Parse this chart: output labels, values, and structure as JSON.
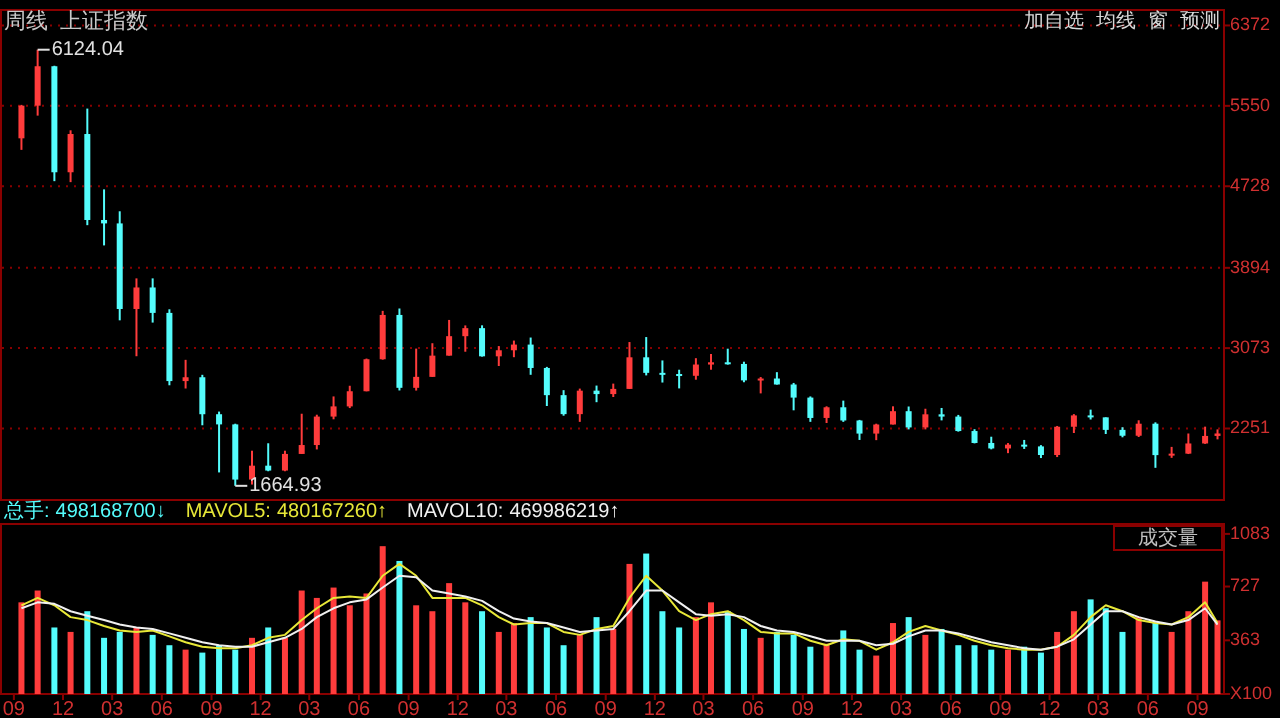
{
  "chart_data": [
    {
      "type": "candlestick",
      "title": "周线",
      "subtitle": "上证指数",
      "x": [
        "2007-09-15",
        "2007-10-15",
        "2007-11-15",
        "2007-12-15",
        "2008-01-15",
        "2008-02-15",
        "2008-03-15",
        "2008-04-15",
        "2008-05-15",
        "2008-06-15",
        "2008-07-15",
        "2008-08-15",
        "2008-09-15",
        "2008-10-15",
        "2008-11-15",
        "2008-12-15",
        "2009-01-15",
        "2009-02-15",
        "2009-03-15",
        "2009-04-15",
        "2009-05-15",
        "2009-06-15",
        "2009-07-15",
        "2009-08-15",
        "2009-09-15",
        "2009-10-15",
        "2009-11-15",
        "2009-12-15",
        "2010-01-15",
        "2010-02-15",
        "2010-03-15",
        "2010-04-15",
        "2010-05-15",
        "2010-06-15",
        "2010-07-15",
        "2010-08-15",
        "2010-09-15",
        "2010-10-15",
        "2010-11-15",
        "2010-12-15",
        "2011-01-15",
        "2011-02-15",
        "2011-03-15",
        "2011-04-15",
        "2011-05-15",
        "2011-06-15",
        "2011-07-15",
        "2011-08-15",
        "2011-09-15",
        "2011-10-15",
        "2011-11-15",
        "2011-12-15",
        "2012-01-15",
        "2012-02-15",
        "2012-03-15",
        "2012-04-15",
        "2012-05-15",
        "2012-06-15",
        "2012-07-15",
        "2012-08-15",
        "2012-09-15",
        "2012-10-15",
        "2012-11-15",
        "2012-12-15",
        "2013-01-15",
        "2013-02-15",
        "2013-03-15",
        "2013-04-15",
        "2013-05-15",
        "2013-06-15",
        "2013-07-15",
        "2013-08-15",
        "2013-09-15",
        "2013-10-08"
      ],
      "ohlc": [
        [
          5218,
          5560,
          5100,
          5552
        ],
        [
          5552,
          6124.04,
          5450,
          5955
        ],
        [
          5955,
          5960,
          4780,
          4871
        ],
        [
          4871,
          5300,
          4770,
          5262
        ],
        [
          5262,
          5522,
          4330,
          4383
        ],
        [
          4383,
          4696,
          4123,
          4348
        ],
        [
          4348,
          4472,
          3357,
          3473
        ],
        [
          3473,
          3786,
          2990,
          3693
        ],
        [
          3693,
          3786,
          3334,
          3433
        ],
        [
          3433,
          3470,
          2693,
          2736
        ],
        [
          2736,
          2953,
          2660,
          2775
        ],
        [
          2775,
          2800,
          2284,
          2397
        ],
        [
          2397,
          2424,
          1802,
          2293
        ],
        [
          2293,
          2300,
          1664.93,
          1729
        ],
        [
          1729,
          2024,
          1678,
          1871
        ],
        [
          1871,
          2100,
          1814,
          1821
        ],
        [
          1821,
          2024,
          1814,
          1991
        ],
        [
          1991,
          2402,
          1991,
          2082
        ],
        [
          2082,
          2392,
          2037,
          2373
        ],
        [
          2373,
          2579,
          2345,
          2477
        ],
        [
          2477,
          2688,
          2460,
          2632
        ],
        [
          2632,
          2966,
          2631,
          2959
        ],
        [
          2959,
          3454,
          2955,
          3412
        ],
        [
          3412,
          3478,
          2640,
          2667
        ],
        [
          2667,
          3068,
          2639,
          2779
        ],
        [
          2779,
          3123,
          2779,
          2996
        ],
        [
          2996,
          3361,
          2996,
          3195
        ],
        [
          3195,
          3305,
          3036,
          3277
        ],
        [
          3277,
          3306,
          2986,
          2989
        ],
        [
          2989,
          3094,
          2890,
          3051
        ],
        [
          3051,
          3150,
          2980,
          3109
        ],
        [
          3109,
          3181,
          2800,
          2870
        ],
        [
          2870,
          2881,
          2481,
          2592
        ],
        [
          2592,
          2643,
          2382,
          2398
        ],
        [
          2398,
          2659,
          2319,
          2638
        ],
        [
          2638,
          2690,
          2520,
          2603
        ],
        [
          2603,
          2710,
          2573,
          2656
        ],
        [
          2656,
          3135,
          2655,
          2979
        ],
        [
          2979,
          3186,
          2794,
          2820
        ],
        [
          2820,
          2947,
          2721,
          2808
        ],
        [
          2808,
          2852,
          2661,
          2790
        ],
        [
          2790,
          2970,
          2750,
          2905
        ],
        [
          2905,
          3013,
          2852,
          2928
        ],
        [
          2928,
          3067,
          2904,
          2911
        ],
        [
          2911,
          2934,
          2724,
          2743
        ],
        [
          2743,
          2777,
          2610,
          2762
        ],
        [
          2762,
          2827,
          2700,
          2701
        ],
        [
          2701,
          2717,
          2437,
          2567
        ],
        [
          2567,
          2579,
          2319,
          2359
        ],
        [
          2359,
          2478,
          2307,
          2468
        ],
        [
          2468,
          2536,
          2319,
          2333
        ],
        [
          2333,
          2339,
          2134,
          2199
        ],
        [
          2199,
          2300,
          2132,
          2292
        ],
        [
          2292,
          2478,
          2292,
          2428
        ],
        [
          2428,
          2476,
          2242,
          2262
        ],
        [
          2262,
          2453,
          2242,
          2396
        ],
        [
          2396,
          2461,
          2334,
          2373
        ],
        [
          2373,
          2390,
          2219,
          2225
        ],
        [
          2225,
          2244,
          2099,
          2103
        ],
        [
          2103,
          2167,
          2038,
          2047
        ],
        [
          2047,
          2102,
          1999,
          2086
        ],
        [
          2086,
          2134,
          2042,
          2068
        ],
        [
          2068,
          2081,
          1949,
          1980
        ],
        [
          1980,
          2277,
          1959,
          2269
        ],
        [
          2269,
          2398,
          2205,
          2385
        ],
        [
          2385,
          2444,
          2343,
          2365
        ],
        [
          2365,
          2365,
          2195,
          2237
        ],
        [
          2237,
          2264,
          2161,
          2177
        ],
        [
          2177,
          2335,
          2164,
          2300
        ],
        [
          2300,
          2314,
          1849,
          1979
        ],
        [
          1979,
          2063,
          1951,
          1994
        ],
        [
          1994,
          2200,
          1990,
          2098
        ],
        [
          2098,
          2270,
          2094,
          2175
        ],
        [
          2175,
          2242,
          2140,
          2200
        ]
      ],
      "xlim": [
        "2007-08-10",
        "2013-10-20"
      ],
      "ylim": [
        1520,
        6530
      ],
      "yticks": [
        2251,
        3073,
        3894,
        4728,
        5550,
        6372
      ],
      "grid": "y",
      "tick_labels": "y",
      "annotations": [
        {
          "text": "6124.04",
          "x": "2007-10-15",
          "y": 6124.04
        },
        {
          "text": "1664.93",
          "x": "2008-10-15",
          "y": 1664.93
        },
        "加自选",
        "均线",
        "窗",
        "预测"
      ]
    },
    {
      "type": "bar",
      "x": [
        "2007-09-15",
        "2007-10-15",
        "2007-11-15",
        "2007-12-15",
        "2008-01-15",
        "2008-02-15",
        "2008-03-15",
        "2008-04-15",
        "2008-05-15",
        "2008-06-15",
        "2008-07-15",
        "2008-08-15",
        "2008-09-15",
        "2008-10-15",
        "2008-11-15",
        "2008-12-15",
        "2009-01-15",
        "2009-02-15",
        "2009-03-15",
        "2009-04-15",
        "2009-05-15",
        "2009-06-15",
        "2009-07-15",
        "2009-08-15",
        "2009-09-15",
        "2009-10-15",
        "2009-11-15",
        "2009-12-15",
        "2010-01-15",
        "2010-02-15",
        "2010-03-15",
        "2010-04-15",
        "2010-05-15",
        "2010-06-15",
        "2010-07-15",
        "2010-08-15",
        "2010-09-15",
        "2010-10-15",
        "2010-11-15",
        "2010-12-15",
        "2011-01-15",
        "2011-02-15",
        "2011-03-15",
        "2011-04-15",
        "2011-05-15",
        "2011-06-15",
        "2011-07-15",
        "2011-08-15",
        "2011-09-15",
        "2011-10-15",
        "2011-11-15",
        "2011-12-15",
        "2012-01-15",
        "2012-02-15",
        "2012-03-15",
        "2012-04-15",
        "2012-05-15",
        "2012-06-15",
        "2012-07-15",
        "2012-08-15",
        "2012-09-15",
        "2012-10-15",
        "2012-11-15",
        "2012-12-15",
        "2013-01-15",
        "2013-02-15",
        "2013-03-15",
        "2013-04-15",
        "2013-05-15",
        "2013-06-15",
        "2013-07-15",
        "2013-08-15",
        "2013-09-15",
        "2013-10-08"
      ],
      "series": [
        {
          "name": "总手:",
          "type": "bar",
          "values": [
            620,
            700,
            450,
            420,
            560,
            380,
            420,
            450,
            400,
            330,
            300,
            280,
            330,
            300,
            380,
            450,
            380,
            700,
            650,
            720,
            600,
            680,
            1000,
            900,
            600,
            560,
            750,
            620,
            560,
            420,
            480,
            520,
            450,
            330,
            400,
            520,
            440,
            880,
            950,
            560,
            450,
            520,
            620,
            560,
            440,
            380,
            420,
            400,
            320,
            340,
            430,
            300,
            260,
            480,
            520,
            400,
            440,
            330,
            330,
            300,
            300,
            320,
            280,
            420,
            560,
            640,
            580,
            420,
            520,
            480,
            420,
            560,
            760,
            498
          ],
          "colors": [
            "#ff3c3c",
            "#ff3c3c",
            "#54fcfc",
            "#ff3c3c",
            "#54fcfc",
            "#54fcfc",
            "#54fcfc",
            "#ff3c3c",
            "#54fcfc",
            "#54fcfc",
            "#ff3c3c",
            "#54fcfc",
            "#54fcfc",
            "#54fcfc",
            "#ff3c3c",
            "#54fcfc",
            "#ff3c3c",
            "#ff3c3c",
            "#ff3c3c",
            "#ff3c3c",
            "#ff3c3c",
            "#ff3c3c",
            "#ff3c3c",
            "#54fcfc",
            "#ff3c3c",
            "#ff3c3c",
            "#ff3c3c",
            "#ff3c3c",
            "#54fcfc",
            "#ff3c3c",
            "#ff3c3c",
            "#54fcfc",
            "#54fcfc",
            "#54fcfc",
            "#ff3c3c",
            "#54fcfc",
            "#ff3c3c",
            "#ff3c3c",
            "#54fcfc",
            "#54fcfc",
            "#54fcfc",
            "#ff3c3c",
            "#ff3c3c",
            "#54fcfc",
            "#54fcfc",
            "#ff3c3c",
            "#54fcfc",
            "#54fcfc",
            "#54fcfc",
            "#ff3c3c",
            "#54fcfc",
            "#54fcfc",
            "#ff3c3c",
            "#ff3c3c",
            "#54fcfc",
            "#ff3c3c",
            "#54fcfc",
            "#54fcfc",
            "#54fcfc",
            "#54fcfc",
            "#ff3c3c",
            "#54fcfc",
            "#54fcfc",
            "#ff3c3c",
            "#ff3c3c",
            "#54fcfc",
            "#54fcfc",
            "#54fcfc",
            "#ff3c3c",
            "#54fcfc",
            "#ff3c3c",
            "#ff3c3c",
            "#ff3c3c",
            "#ff3c3c"
          ]
        },
        {
          "name": "MAVOL5:",
          "type": "line",
          "color": "#e8e838",
          "values": [
            600,
            650,
            600,
            520,
            500,
            460,
            430,
            420,
            430,
            390,
            350,
            320,
            310,
            310,
            330,
            380,
            400,
            500,
            580,
            650,
            660,
            650,
            800,
            880,
            800,
            650,
            650,
            650,
            600,
            520,
            470,
            480,
            480,
            420,
            400,
            440,
            460,
            650,
            800,
            700,
            560,
            500,
            540,
            560,
            500,
            420,
            410,
            410,
            360,
            330,
            370,
            360,
            300,
            350,
            420,
            460,
            430,
            400,
            360,
            330,
            310,
            300,
            300,
            320,
            400,
            520,
            600,
            560,
            500,
            480,
            470,
            520,
            620,
            480
          ]
        },
        {
          "name": "MAVOL10:",
          "type": "line",
          "color": "#f0f0f0",
          "values": [
            580,
            620,
            610,
            560,
            530,
            500,
            470,
            450,
            440,
            410,
            380,
            350,
            330,
            320,
            320,
            350,
            380,
            440,
            520,
            580,
            620,
            640,
            720,
            800,
            790,
            700,
            680,
            660,
            630,
            560,
            510,
            490,
            480,
            450,
            420,
            430,
            440,
            560,
            700,
            700,
            620,
            540,
            530,
            540,
            520,
            460,
            430,
            420,
            390,
            360,
            360,
            360,
            330,
            340,
            390,
            430,
            430,
            410,
            380,
            350,
            330,
            310,
            300,
            320,
            370,
            470,
            560,
            560,
            520,
            490,
            470,
            500,
            580,
            470
          ]
        }
      ],
      "xlim": [
        "2007-08-10",
        "2013-10-20"
      ],
      "xticks": [
        {
          "value": "2007-09-01",
          "label": "09"
        },
        {
          "value": "2007-12-01",
          "label": "12"
        },
        {
          "value": "2008-03-01",
          "label": "03"
        },
        {
          "value": "2008-06-01",
          "label": "06"
        },
        {
          "value": "2008-09-01",
          "label": "09"
        },
        {
          "value": "2008-12-01",
          "label": "12"
        },
        {
          "value": "2009-03-01",
          "label": "03"
        },
        {
          "value": "2009-06-01",
          "label": "06"
        },
        {
          "value": "2009-09-01",
          "label": "09"
        },
        {
          "value": "2009-12-01",
          "label": "12"
        },
        {
          "value": "2010-03-01",
          "label": "03"
        },
        {
          "value": "2010-06-01",
          "label": "06"
        },
        {
          "value": "2010-09-01",
          "label": "09"
        },
        {
          "value": "2010-12-01",
          "label": "12"
        },
        {
          "value": "2011-03-01",
          "label": "03"
        },
        {
          "value": "2011-06-01",
          "label": "06"
        },
        {
          "value": "2011-09-01",
          "label": "09"
        },
        {
          "value": "2011-12-01",
          "label": "12"
        },
        {
          "value": "2012-03-01",
          "label": "03"
        },
        {
          "value": "2012-06-01",
          "label": "06"
        },
        {
          "value": "2012-09-01",
          "label": "09"
        },
        {
          "value": "2012-12-01",
          "label": "12"
        },
        {
          "value": "2013-03-01",
          "label": "03"
        },
        {
          "value": "2013-06-01",
          "label": "06"
        },
        {
          "value": "2013-09-01",
          "label": "09"
        }
      ],
      "ylim": [
        0,
        1150
      ],
      "yticks": [
        {
          "value": 0,
          "label": "X100"
        },
        363,
        727,
        1083
      ],
      "annotations": [
        "498168700↓",
        "480167260↑",
        "469986219↑",
        "成交量"
      ]
    }
  ]
}
